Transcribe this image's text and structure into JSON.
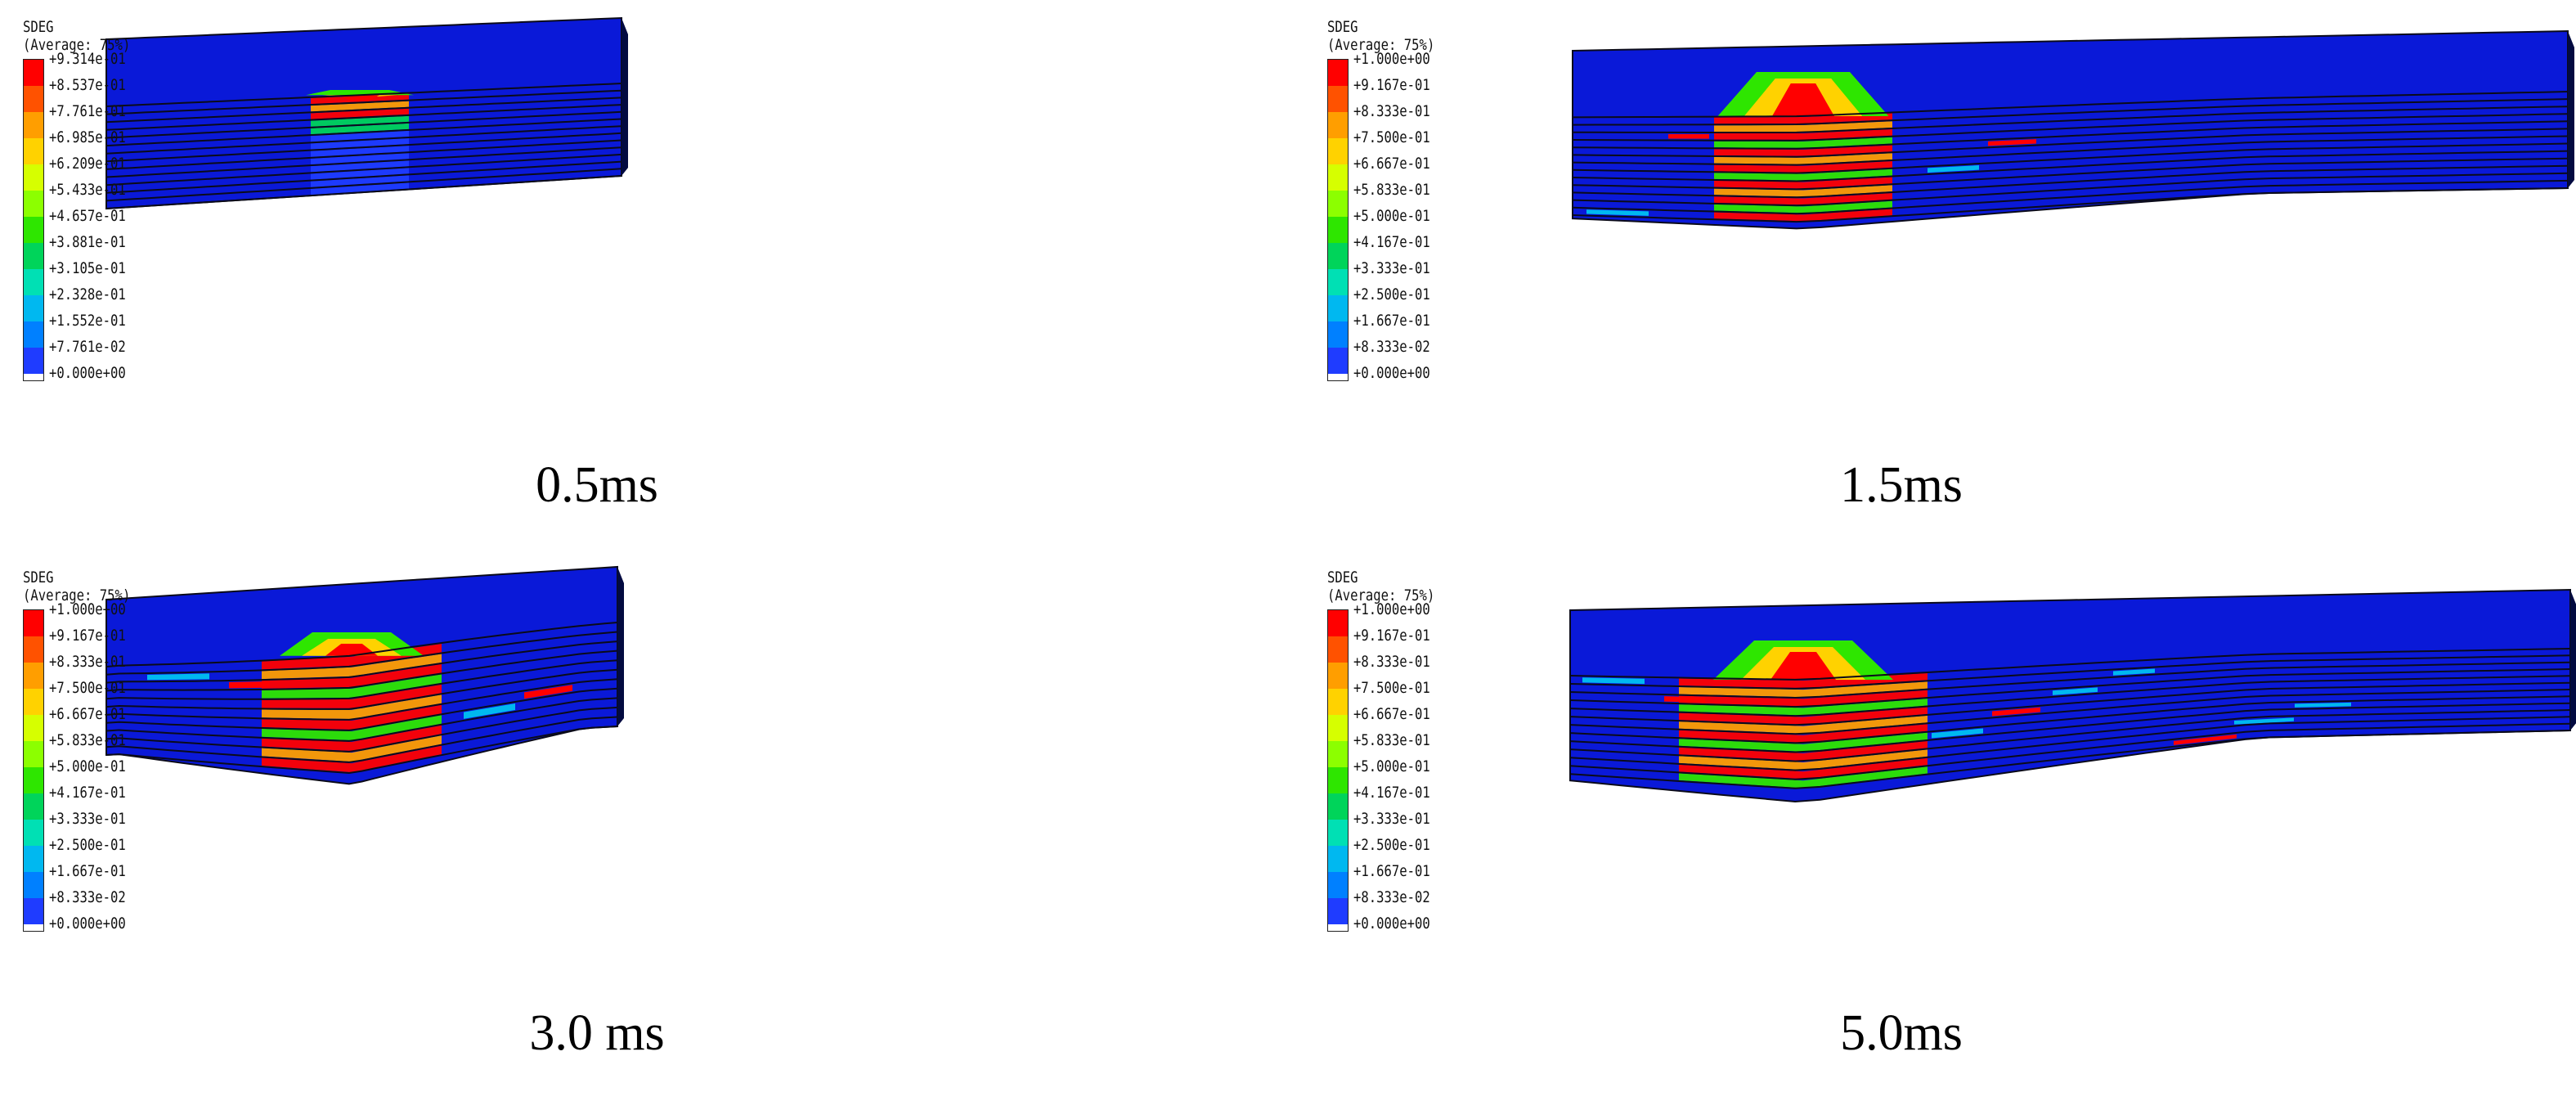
{
  "colors": {
    "contour": [
      "#ff0000",
      "#ff5200",
      "#ff9e00",
      "#ffd200",
      "#d6ff00",
      "#8cff00",
      "#2ee600",
      "#00d45a",
      "#00e0b4",
      "#00b8f0",
      "#0080ff",
      "#1f3cff",
      "#0000c8"
    ],
    "beam_base": "#0a19d8",
    "layer_line": "#0b0b1a"
  },
  "panels": [
    {
      "variable": "SDEG",
      "averaging": "(Average: 75%)",
      "caption": "0.5ms",
      "ticks": [
        "+9.314e-01",
        "+8.537e-01",
        "+7.761e-01",
        "+6.985e-01",
        "+6.209e-01",
        "+5.433e-01",
        "+4.657e-01",
        "+3.881e-01",
        "+3.105e-01",
        "+2.328e-01",
        "+1.552e-01",
        "+7.761e-02",
        "+0.000e+00"
      ]
    },
    {
      "variable": "SDEG",
      "averaging": "(Average: 75%)",
      "caption": "1.5ms",
      "ticks": [
        "+1.000e+00",
        "+9.167e-01",
        "+8.333e-01",
        "+7.500e-01",
        "+6.667e-01",
        "+5.833e-01",
        "+5.000e-01",
        "+4.167e-01",
        "+3.333e-01",
        "+2.500e-01",
        "+1.667e-01",
        "+8.333e-02",
        "+0.000e+00"
      ]
    },
    {
      "variable": "SDEG",
      "averaging": "(Average: 75%)",
      "caption": "3.0 ms",
      "ticks": [
        "+1.000e+00",
        "+9.167e-01",
        "+8.333e-01",
        "+7.500e-01",
        "+6.667e-01",
        "+5.833e-01",
        "+5.000e-01",
        "+4.167e-01",
        "+3.333e-01",
        "+2.500e-01",
        "+1.667e-01",
        "+8.333e-02",
        "+0.000e+00"
      ]
    },
    {
      "variable": "SDEG",
      "averaging": "(Average: 75%)",
      "caption": "5.0ms",
      "ticks": [
        "+1.000e+00",
        "+9.167e-01",
        "+8.333e-01",
        "+7.500e-01",
        "+6.667e-01",
        "+5.833e-01",
        "+5.000e-01",
        "+4.167e-01",
        "+3.333e-01",
        "+2.500e-01",
        "+1.667e-01",
        "+8.333e-02",
        "+0.000e+00"
      ]
    }
  ]
}
